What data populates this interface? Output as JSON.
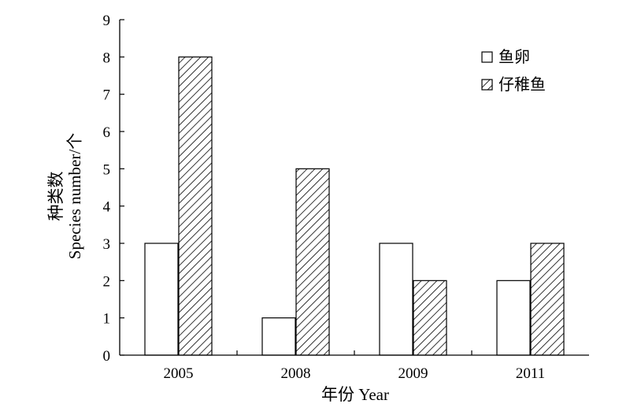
{
  "chart_data": {
    "type": "bar",
    "categories": [
      "2005",
      "2008",
      "2009",
      "2011"
    ],
    "series": [
      {
        "name": "鱼卵",
        "values": [
          3,
          1,
          3,
          2
        ],
        "pattern": "open"
      },
      {
        "name": "仔稚鱼",
        "values": [
          8,
          5,
          2,
          3
        ],
        "pattern": "hatched"
      }
    ],
    "xlabel": "年份 Year",
    "ylabel_lines": [
      "种类数",
      "Species number/个"
    ],
    "ylim": [
      0,
      9
    ],
    "yticks": [
      0,
      1,
      2,
      3,
      4,
      5,
      6,
      7,
      8,
      9
    ],
    "grid": false,
    "legend_position": "top-right"
  },
  "colors": {
    "axis": "#000000",
    "bar_fill": "#ffffff",
    "hatch": "#000000"
  }
}
